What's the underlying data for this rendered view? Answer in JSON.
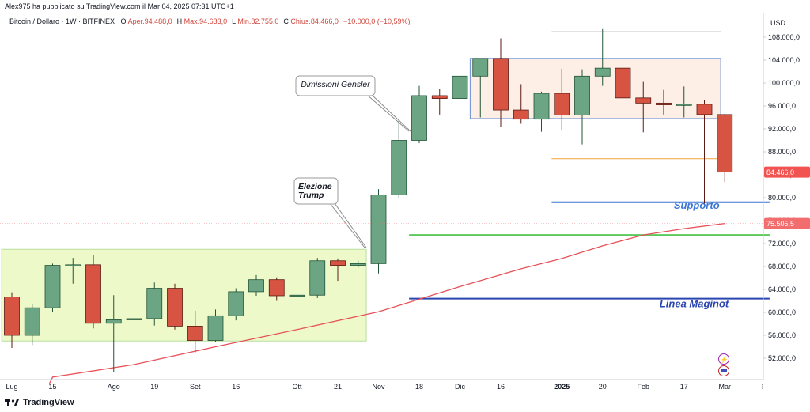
{
  "header": {
    "publish_line": "Alex975 ha pubblicato su TradingView.com il Mar 04, 2025 07:31 UTC+1",
    "symbol_line": "Bitcoin / Dollaro · 1W · BITFINEX",
    "ohlc": [
      {
        "k": "O",
        "v": "Aper.94.488,0"
      },
      {
        "k": "H",
        "v": "Max.94.633,0"
      },
      {
        "k": "L",
        "v": "Min.82.755,0"
      },
      {
        "k": "C",
        "v": "Chius.84.466,0"
      },
      {
        "k": "",
        "v": "−10.000,0 (−10,59%)"
      }
    ]
  },
  "footer": {
    "brand": "TradingView",
    "logo_icon": "tradingview-logo-icon"
  },
  "colors": {
    "up": "#6ba583",
    "up_border": "#225437",
    "down": "#d75442",
    "down_border": "#5b1a13",
    "ma": "#e7525a",
    "box_green": "#eef9c9",
    "box_pink": "#fdeee6",
    "box_blue_border": "#6a8fd6"
  },
  "chart_data": {
    "type": "candlestick",
    "currency": "USD",
    "timeframe": "1W",
    "ylim": [
      48000,
      110000
    ],
    "y_ticks": [
      "108.000,0",
      "104.000,0",
      "100.000,0",
      "96.000,0",
      "92.000,0",
      "88.000,0",
      "84.000,0",
      "80.000,0",
      "76.000,0",
      "72.000,0",
      "68.000,0",
      "64.000,0",
      "60.000,0",
      "56.000,0",
      "52.000,0"
    ],
    "y_tick_values": [
      108000,
      104000,
      100000,
      96000,
      92000,
      88000,
      84000,
      80000,
      76000,
      72000,
      68000,
      64000,
      60000,
      56000,
      52000
    ],
    "x_labels": [
      {
        "label": "Lug",
        "week": 0
      },
      {
        "label": "15",
        "week": 2
      },
      {
        "label": "Ago",
        "week": 5
      },
      {
        "label": "19",
        "week": 7
      },
      {
        "label": "Set",
        "week": 9
      },
      {
        "label": "16",
        "week": 11
      },
      {
        "label": "Ott",
        "week": 14
      },
      {
        "label": "21",
        "week": 16
      },
      {
        "label": "Nov",
        "week": 18
      },
      {
        "label": "18",
        "week": 20
      },
      {
        "label": "Dic",
        "week": 22
      },
      {
        "label": "16",
        "week": 24
      },
      {
        "label": "2025",
        "week": 27
      },
      {
        "label": "20",
        "week": 29
      },
      {
        "label": "Feb",
        "week": 31
      },
      {
        "label": "17",
        "week": 33
      },
      {
        "label": "Mar",
        "week": 35
      }
    ],
    "candles": [
      {
        "o": 62700,
        "h": 63500,
        "l": 53800,
        "c": 56000
      },
      {
        "o": 56000,
        "h": 61500,
        "l": 54300,
        "c": 60800
      },
      {
        "o": 60800,
        "h": 68500,
        "l": 60000,
        "c": 68200
      },
      {
        "o": 68200,
        "h": 69500,
        "l": 65000,
        "c": 68300
      },
      {
        "o": 68300,
        "h": 70000,
        "l": 57200,
        "c": 58100
      },
      {
        "o": 58100,
        "h": 63000,
        "l": 49600,
        "c": 58700
      },
      {
        "o": 58700,
        "h": 61800,
        "l": 57100,
        "c": 58900
      },
      {
        "o": 58900,
        "h": 65200,
        "l": 57700,
        "c": 64200
      },
      {
        "o": 64200,
        "h": 65000,
        "l": 57000,
        "c": 57600
      },
      {
        "o": 57600,
        "h": 60300,
        "l": 53000,
        "c": 55100
      },
      {
        "o": 55100,
        "h": 60500,
        "l": 54800,
        "c": 59400
      },
      {
        "o": 59400,
        "h": 64200,
        "l": 58600,
        "c": 63600
      },
      {
        "o": 63600,
        "h": 66500,
        "l": 62900,
        "c": 65700
      },
      {
        "o": 65700,
        "h": 66100,
        "l": 62000,
        "c": 62900
      },
      {
        "o": 62900,
        "h": 64500,
        "l": 58900,
        "c": 63000
      },
      {
        "o": 63000,
        "h": 69500,
        "l": 62500,
        "c": 69000
      },
      {
        "o": 69000,
        "h": 69400,
        "l": 65500,
        "c": 68200
      },
      {
        "o": 68200,
        "h": 69000,
        "l": 67800,
        "c": 68500
      },
      {
        "o": 68500,
        "h": 81500,
        "l": 66800,
        "c": 80500
      },
      {
        "o": 80500,
        "h": 93500,
        "l": 80000,
        "c": 90000
      },
      {
        "o": 90000,
        "h": 99500,
        "l": 89500,
        "c": 97800
      },
      {
        "o": 97800,
        "h": 98900,
        "l": 94500,
        "c": 97300
      },
      {
        "o": 97300,
        "h": 101500,
        "l": 90500,
        "c": 101200
      },
      {
        "o": 101200,
        "h": 104300,
        "l": 94000,
        "c": 104300
      },
      {
        "o": 104300,
        "h": 107800,
        "l": 92400,
        "c": 95300
      },
      {
        "o": 95300,
        "h": 99800,
        "l": 92900,
        "c": 93700
      },
      {
        "o": 93700,
        "h": 98500,
        "l": 91500,
        "c": 98200
      },
      {
        "o": 98200,
        "h": 102500,
        "l": 91700,
        "c": 94400
      },
      {
        "o": 94400,
        "h": 102400,
        "l": 89300,
        "c": 101200
      },
      {
        "o": 101200,
        "h": 109400,
        "l": 99500,
        "c": 102600
      },
      {
        "o": 102600,
        "h": 106600,
        "l": 96300,
        "c": 97400
      },
      {
        "o": 97400,
        "h": 100200,
        "l": 91400,
        "c": 96500
      },
      {
        "o": 96500,
        "h": 98800,
        "l": 94500,
        "c": 96200
      },
      {
        "o": 96200,
        "h": 99400,
        "l": 94000,
        "c": 96300
      },
      {
        "o": 96300,
        "h": 97000,
        "l": 78600,
        "c": 94500
      },
      {
        "o": 94500,
        "h": 94633,
        "l": 82755,
        "c": 84466
      }
    ],
    "moving_average": {
      "start": {
        "week": 2,
        "value": 48700
      },
      "points": [
        [
          2,
          48700
        ],
        [
          6,
          50900
        ],
        [
          10,
          54000
        ],
        [
          14,
          57000
        ],
        [
          18,
          60100
        ],
        [
          22,
          64500
        ],
        [
          25,
          67600
        ],
        [
          27,
          69400
        ],
        [
          29,
          71600
        ],
        [
          31,
          73500
        ],
        [
          33,
          74600
        ],
        [
          35,
          75505
        ]
      ]
    },
    "price_tags": [
      {
        "label": "84.466,0",
        "value": 84466,
        "color": "#f05350"
      },
      {
        "label": "75.505,5",
        "value": 75505,
        "color": "#f26d6d"
      }
    ],
    "zones": [
      {
        "name": "green-range-box",
        "w0": -0.5,
        "w1": 17.4,
        "y0": 71000,
        "y1": 55000,
        "color": "#eef9c9",
        "border": "#b9dfa0"
      },
      {
        "name": "pink-range-box",
        "w0": 22.5,
        "w1": 34.8,
        "y0": 104300,
        "y1": 93800,
        "color": "#fdeee6",
        "border": "#6a8fd6"
      }
    ],
    "lines": [
      {
        "name": "orange-line",
        "w0": 26.5,
        "w1": 34.8,
        "value": 86800,
        "color": "#f2a23a",
        "width": 1
      },
      {
        "name": "support-line",
        "w0": 26.5,
        "w1": 37.2,
        "value": 79200,
        "color": "#3d77d3",
        "width": 2
      },
      {
        "name": "green-line",
        "w0": 19.5,
        "w1": 37.2,
        "value": 73500,
        "color": "#5ac95a",
        "width": 2
      },
      {
        "name": "maginot-line",
        "w0": 19.5,
        "w1": 37.2,
        "value": 62400,
        "color": "#2a45b0",
        "width": 2
      },
      {
        "name": "faint-top-line",
        "w0": 26.5,
        "w1": 34.8,
        "value": 109000,
        "color": "#d9d9d9",
        "width": 1
      }
    ],
    "annotations": [
      {
        "text": "Supporto",
        "week": 32.5,
        "value": 78100,
        "color": "#3d77d3",
        "size": 13
      },
      {
        "text": "Linea Maginot",
        "week": 31.8,
        "value": 60900,
        "color": "#2a45b0",
        "size": 13
      }
    ],
    "callouts": [
      {
        "lines": [
          "Dimissioni Gensler"
        ],
        "bx": 374,
        "by": 96,
        "bw": 100,
        "bh": 25,
        "tx": 519,
        "ty": 166
      },
      {
        "lines": [
          "Elezione",
          "Trump"
        ],
        "bx": 372,
        "by": 225,
        "bw": 55,
        "bh": 33,
        "tx": 463,
        "ty": 313
      }
    ]
  }
}
